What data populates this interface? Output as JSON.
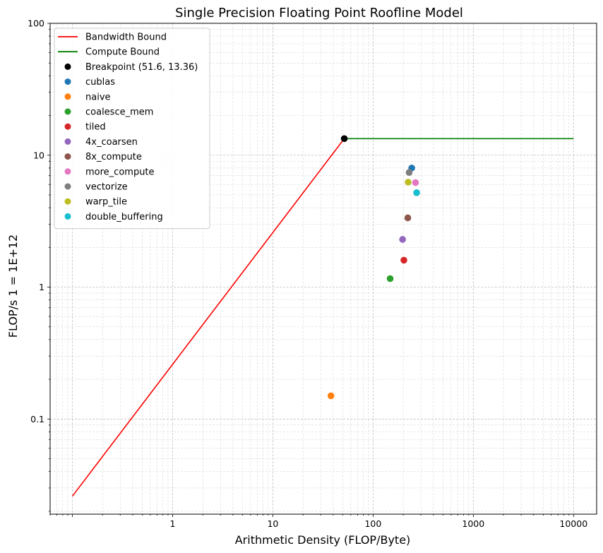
{
  "chart_data": {
    "type": "scatter",
    "title": "Single Precision Floating Point Roofline Model",
    "xlabel": "Arithmetic Density (FLOP/Byte)",
    "ylabel": "FLOP/s 1 = 1E+12",
    "xscale": "log",
    "yscale": "log",
    "xlim": [
      0.06,
      17000
    ],
    "ylim": [
      0.019,
      100
    ],
    "xticks": [
      {
        "value": 1,
        "label": "1"
      },
      {
        "value": 10,
        "label": "10"
      },
      {
        "value": 100,
        "label": "100"
      },
      {
        "value": 1000,
        "label": "1000"
      },
      {
        "value": 10000,
        "label": "10000"
      }
    ],
    "yticks": [
      {
        "value": 0.1,
        "label": "0.1"
      },
      {
        "value": 1,
        "label": "1"
      },
      {
        "value": 10,
        "label": "10"
      },
      {
        "value": 100,
        "label": "100"
      }
    ],
    "grid": true,
    "legend_position": "top-left",
    "lines": [
      {
        "name": "Bandwidth Bound",
        "color": "#ff0000",
        "x": [
          0.1,
          51.6
        ],
        "y": [
          0.026,
          13.36
        ]
      },
      {
        "name": "Compute Bound",
        "color": "#008000",
        "x": [
          51.6,
          10000
        ],
        "y": [
          13.36,
          13.36
        ]
      }
    ],
    "series": [
      {
        "name": "Breakpoint (51.6, 13.36)",
        "color": "#000000",
        "x": 51.6,
        "y": 13.36
      },
      {
        "name": "cublas",
        "color": "#1f77b4",
        "x": 243,
        "y": 8.0
      },
      {
        "name": "naive",
        "color": "#ff7f0e",
        "x": 38,
        "y": 0.15
      },
      {
        "name": "coalesce_mem",
        "color": "#2ca02c",
        "x": 148,
        "y": 1.16
      },
      {
        "name": "tiled",
        "color": "#d62728",
        "x": 203,
        "y": 1.6
      },
      {
        "name": "4x_coarsen",
        "color": "#9467bd",
        "x": 197,
        "y": 2.3
      },
      {
        "name": "8x_compute",
        "color": "#8c564b",
        "x": 222,
        "y": 3.35
      },
      {
        "name": "more_compute",
        "color": "#e377c2",
        "x": 265,
        "y": 6.2
      },
      {
        "name": "vectorize",
        "color": "#7f7f7f",
        "x": 229,
        "y": 7.4
      },
      {
        "name": "warp_tile",
        "color": "#bcbd22",
        "x": 224,
        "y": 6.25
      },
      {
        "name": "double_buffering",
        "color": "#17becf",
        "x": 272,
        "y": 5.2
      }
    ]
  }
}
